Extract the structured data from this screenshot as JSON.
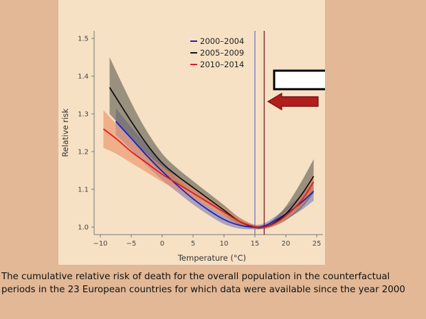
{
  "chart_data": {
    "type": "line",
    "xlabel": "Temperature (°C)",
    "ylabel": "Relative risk",
    "xlim": [
      -11,
      26
    ],
    "ylim": [
      0.98,
      1.52
    ],
    "xticks": [
      -10,
      -5,
      0,
      5,
      10,
      15,
      20,
      25
    ],
    "yticks": [
      1.0,
      1.1,
      1.2,
      1.3,
      1.4,
      1.5
    ],
    "ytick_labels": [
      "1.0",
      "1.1",
      "1.2",
      "1.3",
      "1.4",
      "1.5"
    ],
    "legend_position": "top-center",
    "reference_lines": [
      {
        "x": 15.0,
        "color": "#7474c8"
      },
      {
        "x": 16.5,
        "color": "#7a1a1a"
      }
    ],
    "series": [
      {
        "name": "2000–2004",
        "color": "#1f1fb4",
        "band_color": "#7a78b8",
        "x": [
          -7.5,
          -5,
          -2.5,
          0,
          2.5,
          5,
          7.5,
          10,
          12.5,
          15,
          16.5,
          18,
          20,
          22.5,
          24.5
        ],
        "y": [
          1.28,
          1.235,
          1.19,
          1.148,
          1.11,
          1.075,
          1.045,
          1.02,
          1.005,
          1.0,
          1.003,
          1.015,
          1.035,
          1.065,
          1.095
        ],
        "lower": [
          1.245,
          1.205,
          1.163,
          1.125,
          1.092,
          1.06,
          1.032,
          1.008,
          0.996,
          0.994,
          0.996,
          1.005,
          1.02,
          1.045,
          1.07
        ],
        "upper": [
          1.315,
          1.265,
          1.217,
          1.172,
          1.128,
          1.09,
          1.058,
          1.032,
          1.014,
          1.006,
          1.01,
          1.025,
          1.05,
          1.085,
          1.12
        ]
      },
      {
        "name": "2005–2009",
        "color": "#111111",
        "band_color": "#5e5a50",
        "x": [
          -8.5,
          -5,
          -2.5,
          0,
          2.5,
          5,
          7.5,
          10,
          12.5,
          15,
          16.5,
          18,
          20,
          22.5,
          24.5
        ],
        "y": [
          1.37,
          1.28,
          1.22,
          1.17,
          1.135,
          1.105,
          1.075,
          1.045,
          1.015,
          1.0,
          1.0,
          1.01,
          1.035,
          1.085,
          1.135
        ],
        "lower": [
          1.3,
          1.235,
          1.185,
          1.145,
          1.115,
          1.088,
          1.06,
          1.032,
          1.005,
          0.995,
          0.996,
          1.002,
          1.018,
          1.05,
          1.09
        ],
        "upper": [
          1.45,
          1.33,
          1.255,
          1.195,
          1.155,
          1.122,
          1.09,
          1.058,
          1.025,
          1.005,
          1.005,
          1.02,
          1.055,
          1.12,
          1.18
        ]
      },
      {
        "name": "2010–2014",
        "color": "#dd1e1e",
        "band_color": "#ec8c64",
        "x": [
          -9.5,
          -7.5,
          -5,
          -2.5,
          0,
          2.5,
          5,
          7.5,
          10,
          12.5,
          15,
          16.5,
          18,
          20,
          22.5,
          24.5
        ],
        "y": [
          1.26,
          1.235,
          1.2,
          1.17,
          1.14,
          1.115,
          1.09,
          1.065,
          1.04,
          1.015,
          1.001,
          1.0,
          1.008,
          1.03,
          1.07,
          1.12
        ],
        "lower": [
          1.21,
          1.195,
          1.17,
          1.145,
          1.12,
          1.098,
          1.075,
          1.052,
          1.028,
          1.006,
          0.996,
          0.996,
          1.002,
          1.02,
          1.055,
          1.095
        ],
        "upper": [
          1.31,
          1.275,
          1.23,
          1.195,
          1.16,
          1.132,
          1.105,
          1.078,
          1.052,
          1.024,
          1.006,
          1.004,
          1.015,
          1.042,
          1.088,
          1.145
        ]
      }
    ]
  },
  "caption": "The cumulative relative risk of death for the overall population in the counterfactual periods in the 23 European countries for which data were available since the year 2000"
}
